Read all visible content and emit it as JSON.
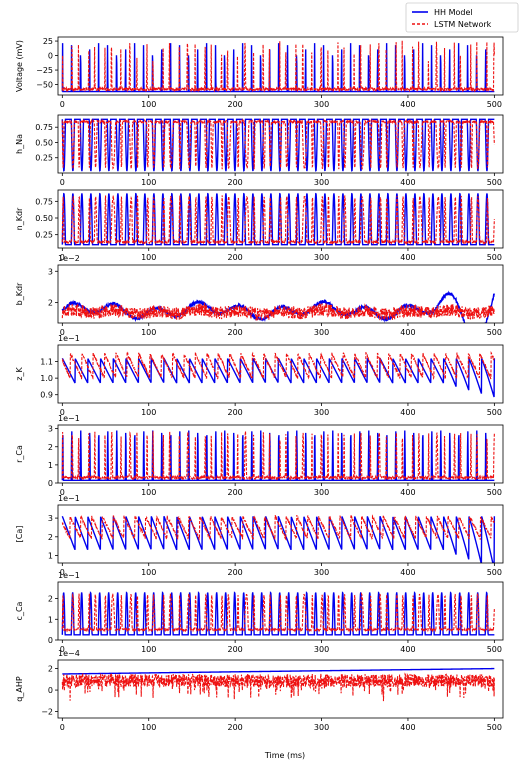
{
  "chart_data": {
    "type": "line",
    "xlabel": "Time (ms)",
    "xlim": [
      -5,
      510
    ],
    "x_ticks": [
      0,
      100,
      200,
      300,
      400,
      500
    ],
    "legend": {
      "placement": "top-right",
      "entries": [
        {
          "name": "HH Model",
          "color": "#0000ee",
          "style": "solid"
        },
        {
          "name": "LSTM Network",
          "color": "#ee1111",
          "style": "dashed"
        }
      ]
    },
    "panels": [
      {
        "ylabel": "Voltage (mV)",
        "multiplier": "",
        "ylim": [
          -68,
          32
        ],
        "yticks": [
          {
            "v": 25,
            "l": "25"
          },
          {
            "v": 0,
            "l": "0"
          },
          {
            "v": -25,
            "l": "−25"
          },
          {
            "v": -50,
            "l": "−50"
          }
        ],
        "kind": "spike",
        "hh": {
          "base": -62,
          "peak": 22,
          "duty": 0.06,
          "n": 48
        },
        "lstm": {
          "base": -58,
          "peak": 24,
          "duty": 0.07,
          "n": 52
        }
      },
      {
        "ylabel": "h_Na",
        "multiplier": "",
        "ylim": [
          0.0,
          0.95
        ],
        "yticks": [
          {
            "v": 0.25,
            "l": "0.25"
          },
          {
            "v": 0.5,
            "l": "0.50"
          },
          {
            "v": 0.75,
            "l": "0.75"
          }
        ],
        "kind": "dip",
        "hh": {
          "base": 0.88,
          "peak": 0.03,
          "duty": 0.35,
          "n": 48
        },
        "lstm": {
          "base": 0.84,
          "peak": 0.08,
          "duty": 0.3,
          "n": 52
        }
      },
      {
        "ylabel": "n_Kdr",
        "multiplier": "",
        "ylim": [
          0.05,
          0.92
        ],
        "yticks": [
          {
            "v": 0.25,
            "l": "0.25"
          },
          {
            "v": 0.5,
            "l": "0.50"
          },
          {
            "v": 0.75,
            "l": "0.75"
          }
        ],
        "kind": "spike",
        "hh": {
          "base": 0.1,
          "peak": 0.87,
          "duty": 0.35,
          "n": 48
        },
        "lstm": {
          "base": 0.14,
          "peak": 0.82,
          "duty": 0.3,
          "n": 52
        }
      },
      {
        "ylabel": "b_Kdr",
        "multiplier": "1e−2",
        "ylim": [
          1.35,
          3.2
        ],
        "yticks": [
          {
            "v": 2,
            "l": "2"
          },
          {
            "v": 3,
            "l": "3"
          }
        ],
        "kind": "slow",
        "hh": {
          "mean": 1.75,
          "amp": 0.35,
          "noise": 0.05
        },
        "lstm": {
          "mean": 1.7,
          "amp": 0.1,
          "noise": 0.2
        }
      },
      {
        "ylabel": "z_K",
        "multiplier": "1e−1",
        "ylim": [
          0.85,
          1.2
        ],
        "yticks": [
          {
            "v": 0.9,
            "l": "0.9"
          },
          {
            "v": 1.0,
            "l": "1.0"
          },
          {
            "v": 1.1,
            "l": "1.1"
          }
        ],
        "kind": "saw",
        "hh": {
          "lo": 0.97,
          "hi": 1.12,
          "n": 34
        },
        "lstm": {
          "lo": 1.0,
          "hi": 1.15,
          "n": 38
        }
      },
      {
        "ylabel": "r_Ca",
        "multiplier": "1e−1",
        "ylim": [
          0.0,
          3.2
        ],
        "yticks": [
          {
            "v": 0,
            "l": "0"
          },
          {
            "v": 1,
            "l": "1"
          },
          {
            "v": 2,
            "l": "2"
          },
          {
            "v": 3,
            "l": "3"
          }
        ],
        "kind": "spike",
        "hh": {
          "base": 0.15,
          "peak": 2.9,
          "duty": 0.1,
          "n": 48
        },
        "lstm": {
          "base": 0.3,
          "peak": 2.8,
          "duty": 0.12,
          "n": 52
        }
      },
      {
        "ylabel": "[Ca]",
        "multiplier": "1e−1",
        "ylim": [
          0.6,
          3.7
        ],
        "yticks": [
          {
            "v": 1,
            "l": "1"
          },
          {
            "v": 2,
            "l": "2"
          },
          {
            "v": 3,
            "l": "3"
          }
        ],
        "kind": "saw",
        "hh": {
          "lo": 1.3,
          "hi": 3.1,
          "n": 34
        },
        "lstm": {
          "lo": 1.9,
          "hi": 3.1,
          "n": 40
        }
      },
      {
        "ylabel": "c_Ca",
        "multiplier": "1e−1",
        "ylim": [
          0.0,
          2.8
        ],
        "yticks": [
          {
            "v": 0,
            "l": "0"
          },
          {
            "v": 1,
            "l": "1"
          },
          {
            "v": 2,
            "l": "2"
          }
        ],
        "kind": "spike",
        "hh": {
          "base": 0.25,
          "peak": 2.3,
          "duty": 0.3,
          "n": 48
        },
        "lstm": {
          "base": 0.5,
          "peak": 2.2,
          "duty": 0.25,
          "n": 52
        }
      },
      {
        "ylabel": "q_AHP",
        "multiplier": "1e−4",
        "ylim": [
          -2.6,
          2.8
        ],
        "yticks": [
          {
            "v": -2,
            "l": "−2"
          },
          {
            "v": 0,
            "l": "0"
          },
          {
            "v": 2,
            "l": "2"
          }
        ],
        "kind": "flatnoise",
        "hh": {
          "start": 1.5,
          "end": 2.0
        },
        "lstm": {
          "mean": 0.9,
          "amp": 0.6,
          "spike": -1.4
        }
      }
    ]
  }
}
